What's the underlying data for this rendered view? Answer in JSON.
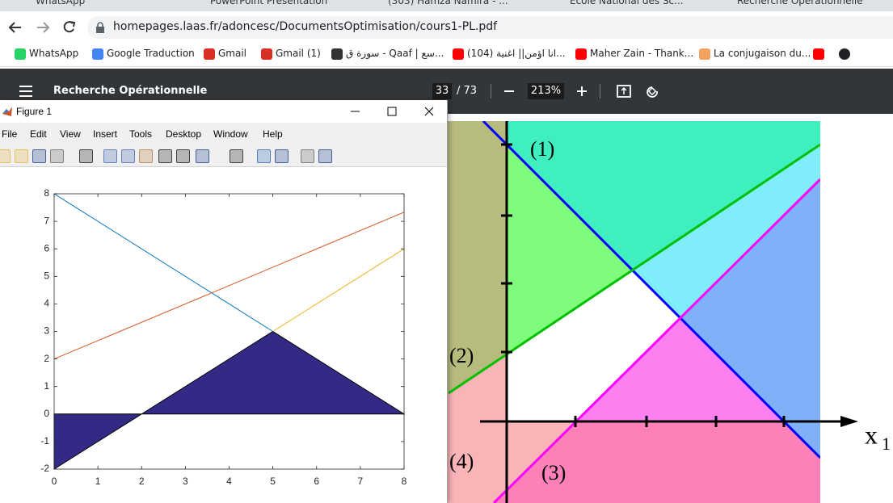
{
  "browser": {
    "tabs": [
      "WhatsApp",
      "PowerPoint Presentation",
      "(303) Hamza Namira - ...",
      "École National des Sc...",
      "Recherche Opérationnelle"
    ],
    "url": "homepages.laas.fr/adoncesc/DocumentsOptimisation/cours1-PL.pdf",
    "bookmarks": [
      "WhatsApp",
      "Google Traduction",
      "Gmail",
      "Gmail (1)",
      "سورة ق - Qaaf | سع...",
      "(104) انا اؤمن|| اغنية...",
      "Maher Zain - Thank...",
      "La conjugaison du..."
    ]
  },
  "pdf_viewer": {
    "title": "Recherche Opérationnelle",
    "page": "33",
    "page_total": "/ 73",
    "zoom": "213%",
    "figure_labels": [
      "(1)",
      "(2)",
      "(3)",
      "(4)"
    ],
    "axis_label": "x",
    "axis_subscript": "1"
  },
  "figure_window": {
    "title": "Figure 1",
    "menu": [
      "File",
      "Edit",
      "View",
      "Insert",
      "Tools",
      "Desktop",
      "Window",
      "Help"
    ]
  },
  "chart_data": {
    "type": "line",
    "xlim": [
      0,
      8
    ],
    "ylim": [
      -2,
      8
    ],
    "xticks": [
      0,
      1,
      2,
      3,
      4,
      5,
      6,
      7,
      8
    ],
    "yticks": [
      -2,
      -1,
      0,
      1,
      2,
      3,
      4,
      5,
      6,
      7,
      8
    ],
    "series": [
      {
        "style": "patch",
        "color": "#332a86",
        "x": [
          0,
          0,
          2,
          5,
          8
        ],
        "values": [
          0,
          -2,
          0,
          3,
          0
        ]
      },
      {
        "style": "line",
        "color": "#0072bd",
        "x": [
          0,
          5
        ],
        "values": [
          8,
          3
        ]
      },
      {
        "style": "line",
        "color": "#d95319",
        "x": [
          0,
          8
        ],
        "values": [
          2,
          7.33
        ]
      },
      {
        "style": "line",
        "color": "#edb120",
        "x": [
          5,
          8
        ],
        "values": [
          3,
          6
        ]
      }
    ]
  }
}
